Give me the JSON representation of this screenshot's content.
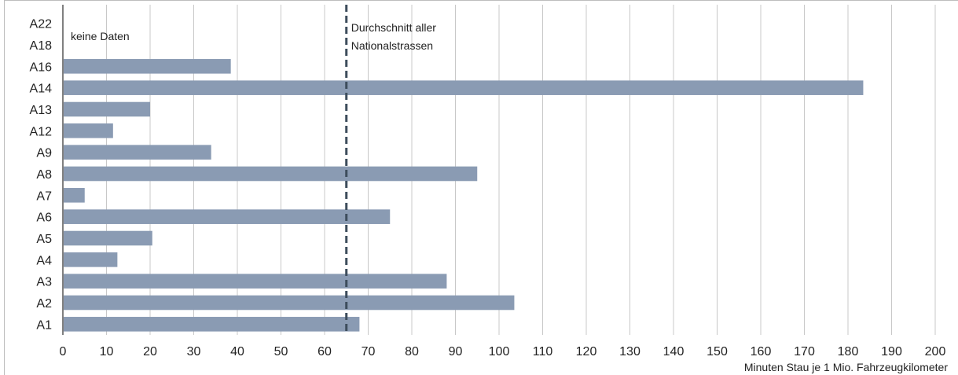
{
  "chart_data": {
    "type": "bar",
    "orientation": "horizontal",
    "categories": [
      "A22",
      "A18",
      "A16",
      "A14",
      "A13",
      "A12",
      "A9",
      "A8",
      "A7",
      "A6",
      "A5",
      "A4",
      "A3",
      "A2",
      "A1"
    ],
    "values": [
      null,
      null,
      38.5,
      183.5,
      20,
      11.5,
      34,
      95,
      5,
      75,
      20.5,
      12.5,
      88,
      103.5,
      68
    ],
    "xlabel": "Minuten Stau je 1 Mio. Fahrzeugkilometer",
    "xlim": [
      0,
      200
    ],
    "xticks": [
      0,
      10,
      20,
      30,
      40,
      50,
      60,
      70,
      80,
      90,
      100,
      110,
      120,
      130,
      140,
      150,
      160,
      170,
      180,
      190,
      200
    ],
    "grid": "vertical",
    "reference_line": {
      "value": 65,
      "label_line1": "Durchschnitt aller",
      "label_line2": "Nationalstrassen"
    },
    "no_data_label": "keine Daten",
    "colors": {
      "bar": "#8a9bb3",
      "reference_line": "#3d4d5c",
      "grid": "#c8c8c8",
      "axis": "#000000",
      "text": "#222222"
    }
  }
}
